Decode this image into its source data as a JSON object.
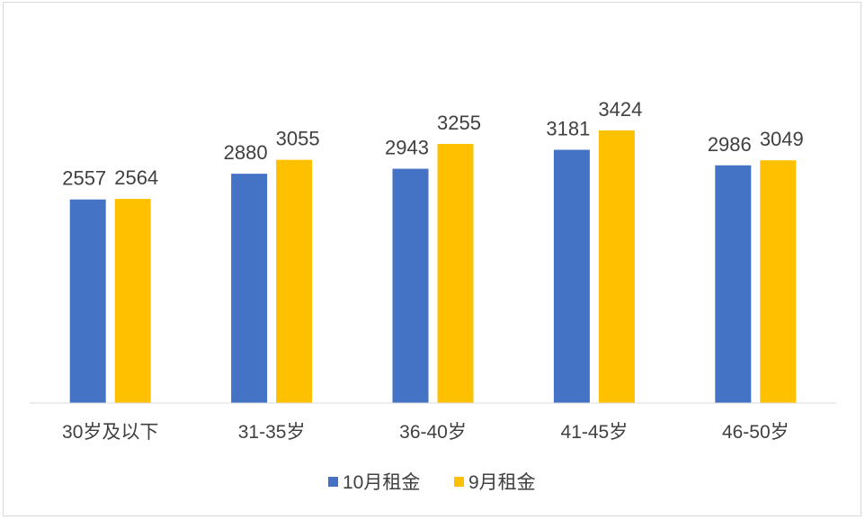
{
  "chart_data": {
    "type": "bar",
    "title": "",
    "xlabel": "",
    "ylabel": "",
    "categories": [
      "30岁及以下",
      "31-35岁",
      "36-40岁",
      "41-45岁",
      "46-50岁"
    ],
    "series": [
      {
        "name": "10月租金",
        "color": "#4472C4",
        "values": [
          2557,
          2880,
          2943,
          3181,
          2986
        ]
      },
      {
        "name": "9月租金",
        "color": "#FFC000",
        "values": [
          2564,
          3055,
          3255,
          3424,
          3049
        ]
      }
    ],
    "ylim": [
      0,
      3800
    ],
    "grid": false,
    "y_axis_visible": false,
    "data_labels": true,
    "legend_position": "bottom"
  }
}
